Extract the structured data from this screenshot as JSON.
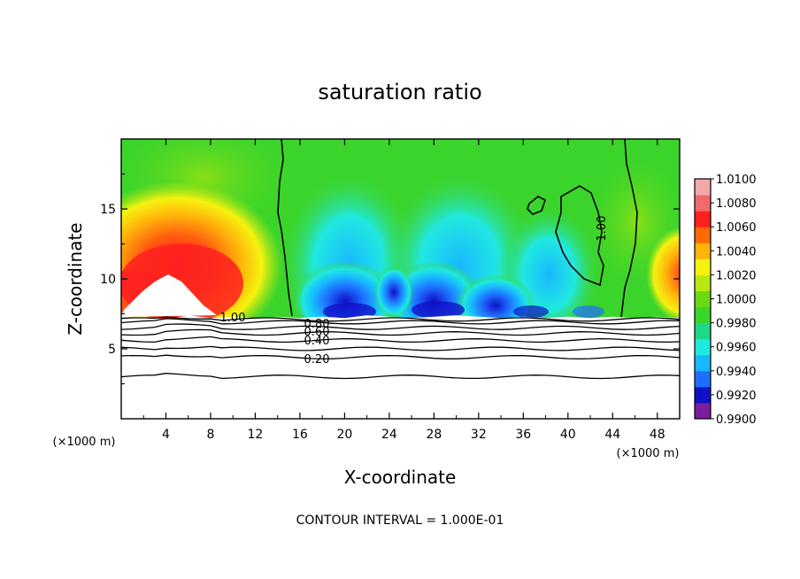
{
  "chart_data": {
    "type": "heatmap",
    "title": "saturation ratio",
    "xlabel": "X-coordinate",
    "ylabel": "Z-coordinate",
    "x_unit_label": "(×1000 m)",
    "z_unit_label": "(×1000 m)",
    "xlim": [
      0,
      50
    ],
    "ylim": [
      0,
      20
    ],
    "x_ticks": [
      "4",
      "8",
      "12",
      "16",
      "20",
      "24",
      "28",
      "32",
      "36",
      "40",
      "44",
      "48"
    ],
    "y_ticks": [
      "5",
      "10",
      "15"
    ],
    "colorbar": {
      "min": 0.99,
      "max": 1.01,
      "labels": [
        "1.0100",
        "1.0080",
        "1.0060",
        "1.0040",
        "1.0020",
        "1.0000",
        "0.9980",
        "0.9960",
        "0.9940",
        "0.9920",
        "0.9900"
      ],
      "colors": [
        "#7a1f9e",
        "#1010c8",
        "#1f6fff",
        "#18b8ff",
        "#20e8e0",
        "#1ed88a",
        "#3bd42a",
        "#6ad814",
        "#b8e814",
        "#f5f210",
        "#ffb40a",
        "#ff6a08",
        "#ff2020",
        "#f06a6a",
        "#f5a8a8"
      ]
    },
    "contour_interval_note": "CONTOUR INTERVAL = 1.000E-01",
    "contour_labels": [
      "1.00",
      "0.80",
      "0.60",
      "0.40",
      "0.20",
      "1.00"
    ],
    "contour_levels_z": [
      3.0,
      4.4,
      5.0,
      5.6,
      6.1,
      6.5,
      6.9,
      7.1
    ],
    "terrain": {
      "x": [
        0,
        2,
        4,
        6,
        8,
        10,
        12,
        14,
        16,
        18,
        20,
        22,
        24,
        26,
        28,
        30,
        32,
        34,
        36,
        38,
        40,
        42,
        44,
        46,
        48,
        50
      ],
      "z": [
        7.2,
        7.3,
        7.1,
        7.4,
        7.2,
        7.3,
        7.2,
        7.3,
        7.2,
        7.3,
        7.2,
        7.4,
        7.3,
        7.2,
        7.3,
        7.4,
        7.3,
        7.2,
        7.3,
        7.2,
        7.3,
        7.2,
        7.3,
        7.2,
        7.3,
        7.2
      ]
    }
  }
}
